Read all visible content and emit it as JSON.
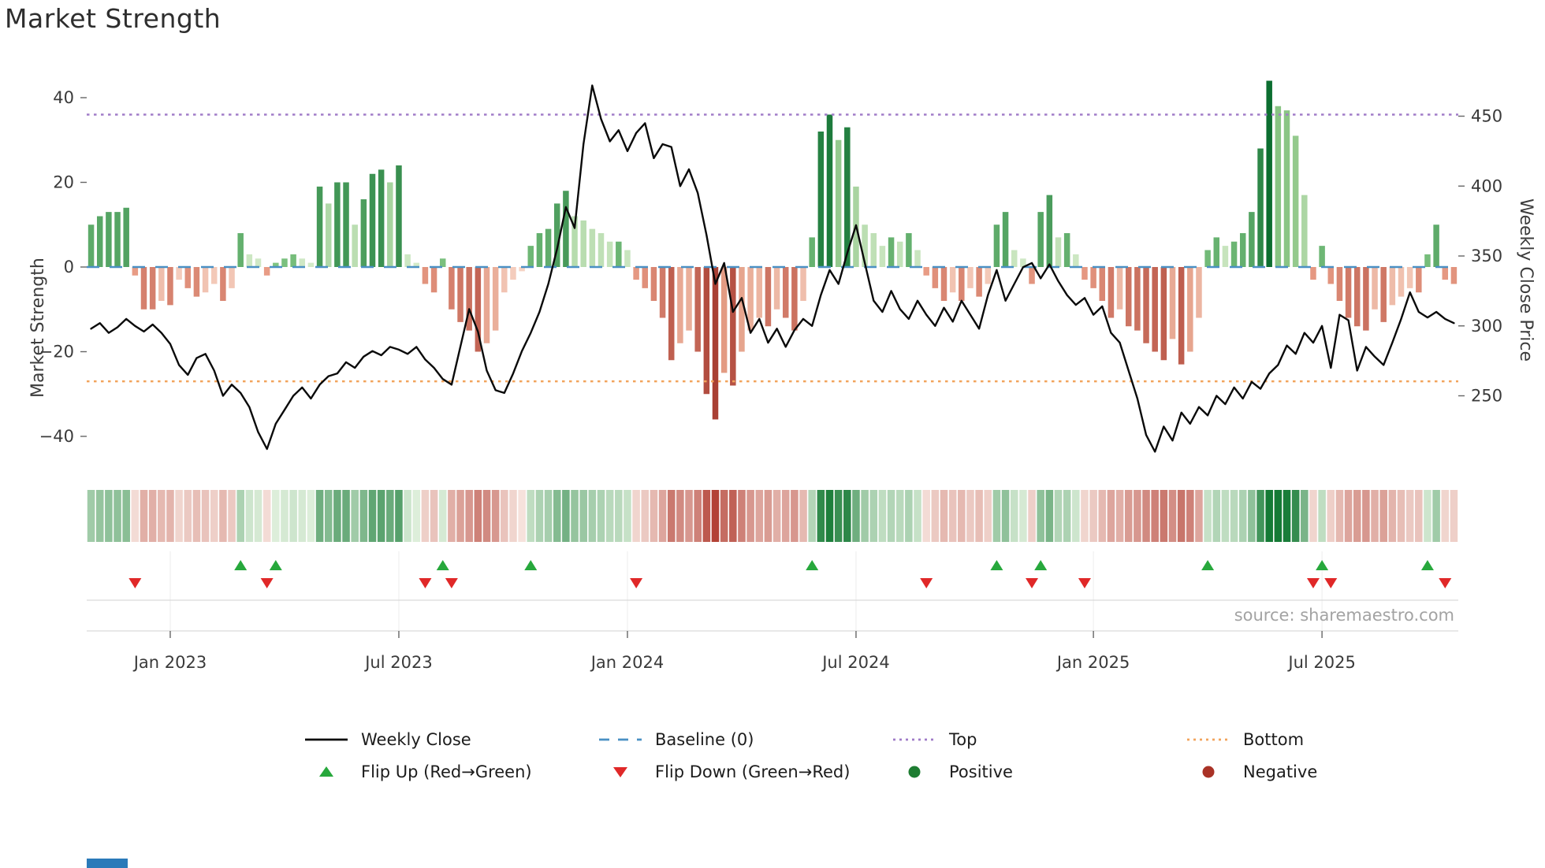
{
  "title": "Market Strength",
  "source": "source: sharemaestro.com",
  "colors": {
    "price_line": "#0a0a0a",
    "baseline": "#4a90c4",
    "top_line": "#a07cc8",
    "bottom_line": "#f2a45c",
    "flip_up": "#27a83c",
    "flip_down": "#e02828",
    "positive_dot": "#1e7d32",
    "negative_dot": "#a93226",
    "tick_text": "#3a3a3a",
    "source_text": "#a3a3a3",
    "grid_line": "#d9d9d9",
    "bottom_bar": "#2a7ab9"
  },
  "axes": {
    "left_label": "Market Strength",
    "right_label": "Weekly Close Price",
    "left_ticks": [
      40,
      20,
      0,
      -20,
      -40
    ],
    "left_tick_labels": [
      "40",
      "20",
      "0",
      "−20",
      "−40"
    ],
    "right_ticks": [
      450,
      400,
      350,
      300,
      250
    ],
    "right_tick_labels": [
      "450",
      "400",
      "350",
      "300",
      "250"
    ],
    "x_ticks": [
      {
        "label": "Jan 2023",
        "week": 9
      },
      {
        "label": "Jul 2023",
        "week": 35
      },
      {
        "label": "Jan 2024",
        "week": 61
      },
      {
        "label": "Jul 2024",
        "week": 87
      },
      {
        "label": "Jan 2025",
        "week": 114
      },
      {
        "label": "Jul 2025",
        "week": 140
      }
    ]
  },
  "chart_data": {
    "type": "bar",
    "subtype": "weekly strength bars + price line overlay + heatmap strip + flip markers",
    "title": "Market Strength",
    "legend_position": "bottom",
    "grid": false,
    "weeks_count": 156,
    "left_axis": {
      "label": "Market Strength",
      "ticks": [
        40,
        20,
        0,
        -20,
        -40
      ],
      "range": [
        -46,
        47
      ]
    },
    "right_axis": {
      "label": "Weekly Close Price",
      "ticks": [
        450,
        400,
        350,
        300,
        250
      ],
      "range": [
        203,
        486
      ]
    },
    "series": [
      {
        "name": "Market Strength",
        "type": "bar",
        "yaxis": "left",
        "values": [
          10,
          12,
          13,
          13,
          14,
          -2,
          -10,
          -10,
          -8,
          -9,
          -3,
          -5,
          -7,
          -6,
          -4,
          -8,
          -5,
          8,
          3,
          2,
          -2,
          1,
          2,
          3,
          2,
          1,
          19,
          15,
          20,
          20,
          10,
          16,
          22,
          23,
          20,
          24,
          3,
          1,
          -4,
          -6,
          2,
          -10,
          -13,
          -15,
          -20,
          -18,
          -15,
          -6,
          -3,
          -1,
          5,
          8,
          9,
          15,
          18,
          12,
          11,
          9,
          8,
          6,
          6,
          4,
          -3,
          -5,
          -8,
          -12,
          -22,
          -18,
          -15,
          -20,
          -30,
          -36,
          -25,
          -28,
          -20,
          -15,
          -12,
          -14,
          -10,
          -12,
          -15,
          -8,
          7,
          32,
          36,
          30,
          33,
          19,
          10,
          8,
          5,
          7,
          6,
          8,
          4,
          -2,
          -5,
          -8,
          -6,
          -8,
          -5,
          -7,
          -4,
          10,
          13,
          4,
          2,
          -4,
          13,
          17,
          7,
          8,
          3,
          -3,
          -5,
          -8,
          -12,
          -10,
          -14,
          -15,
          -18,
          -20,
          -22,
          -17,
          -23,
          -20,
          -12,
          4,
          7,
          5,
          6,
          8,
          13,
          28,
          44,
          38,
          37,
          31,
          17,
          -3,
          5,
          -4,
          -8,
          -12,
          -14,
          -15,
          -10,
          -13,
          -9,
          -7,
          -5,
          -6,
          3,
          10,
          -3,
          -4
        ]
      },
      {
        "name": "Weekly Close",
        "type": "line",
        "yaxis": "right",
        "values": [
          298,
          302,
          295,
          299,
          305,
          300,
          296,
          301,
          295,
          287,
          272,
          265,
          277,
          280,
          268,
          250,
          258,
          252,
          242,
          224,
          212,
          230,
          240,
          250,
          256,
          248,
          258,
          264,
          266,
          274,
          270,
          278,
          282,
          279,
          285,
          283,
          280,
          285,
          276,
          270,
          262,
          258,
          285,
          312,
          296,
          268,
          254,
          252,
          266,
          282,
          295,
          310,
          330,
          355,
          385,
          370,
          430,
          472,
          448,
          432,
          440,
          425,
          438,
          445,
          420,
          430,
          428,
          400,
          412,
          395,
          365,
          330,
          345,
          310,
          320,
          295,
          305,
          288,
          298,
          285,
          297,
          305,
          300,
          322,
          340,
          330,
          352,
          372,
          345,
          318,
          310,
          325,
          312,
          305,
          318,
          308,
          300,
          313,
          303,
          318,
          308,
          298,
          322,
          340,
          318,
          330,
          342,
          345,
          334,
          344,
          332,
          322,
          315,
          320,
          308,
          314,
          295,
          288,
          268,
          248,
          222,
          210,
          228,
          218,
          238,
          230,
          242,
          236,
          250,
          244,
          256,
          248,
          260,
          255,
          266,
          272,
          286,
          280,
          295,
          288,
          300,
          270,
          308,
          304,
          268,
          285,
          278,
          272,
          288,
          305,
          324,
          310,
          306,
          310,
          305,
          302
        ]
      }
    ],
    "reference_lines": [
      {
        "name": "Baseline (0)",
        "value": 0,
        "style": "dashed",
        "color": "#4a90c4"
      },
      {
        "name": "Top",
        "value": 36,
        "style": "dotted",
        "color": "#a07cc8"
      },
      {
        "name": "Bottom",
        "value": -27,
        "style": "dotted",
        "color": "#f2a45c"
      }
    ],
    "flip_up_weeks": [
      17,
      21,
      40,
      50,
      82,
      103,
      108,
      127,
      140,
      152
    ],
    "flip_down_weeks": [
      5,
      20,
      38,
      41,
      62,
      95,
      107,
      113,
      139,
      141,
      154
    ],
    "heatmap_strip": "one cell per week, green for positive strength, red for negative, intensity scales with magnitude",
    "x_tick_labels": [
      "Jan 2023",
      "Jul 2023",
      "Jan 2024",
      "Jul 2024",
      "Jan 2025",
      "Jul 2025"
    ]
  },
  "legend": {
    "row1": [
      {
        "name": "weekly-close",
        "glyph": "line",
        "label": "Weekly Close"
      },
      {
        "name": "baseline",
        "glyph": "dash",
        "label": "Baseline (0)"
      },
      {
        "name": "top",
        "glyph": "dot-purple",
        "label": "Top"
      },
      {
        "name": "bottom",
        "glyph": "dot-orange",
        "label": "Bottom"
      }
    ],
    "row2": [
      {
        "name": "flip-up",
        "glyph": "triangle-up",
        "label": "Flip Up (Red→Green)"
      },
      {
        "name": "flip-down",
        "glyph": "triangle-down",
        "label": "Flip Down (Green→Red)"
      },
      {
        "name": "positive",
        "glyph": "dot-green",
        "label": "Positive"
      },
      {
        "name": "negative",
        "glyph": "dot-red",
        "label": "Negative"
      }
    ]
  }
}
